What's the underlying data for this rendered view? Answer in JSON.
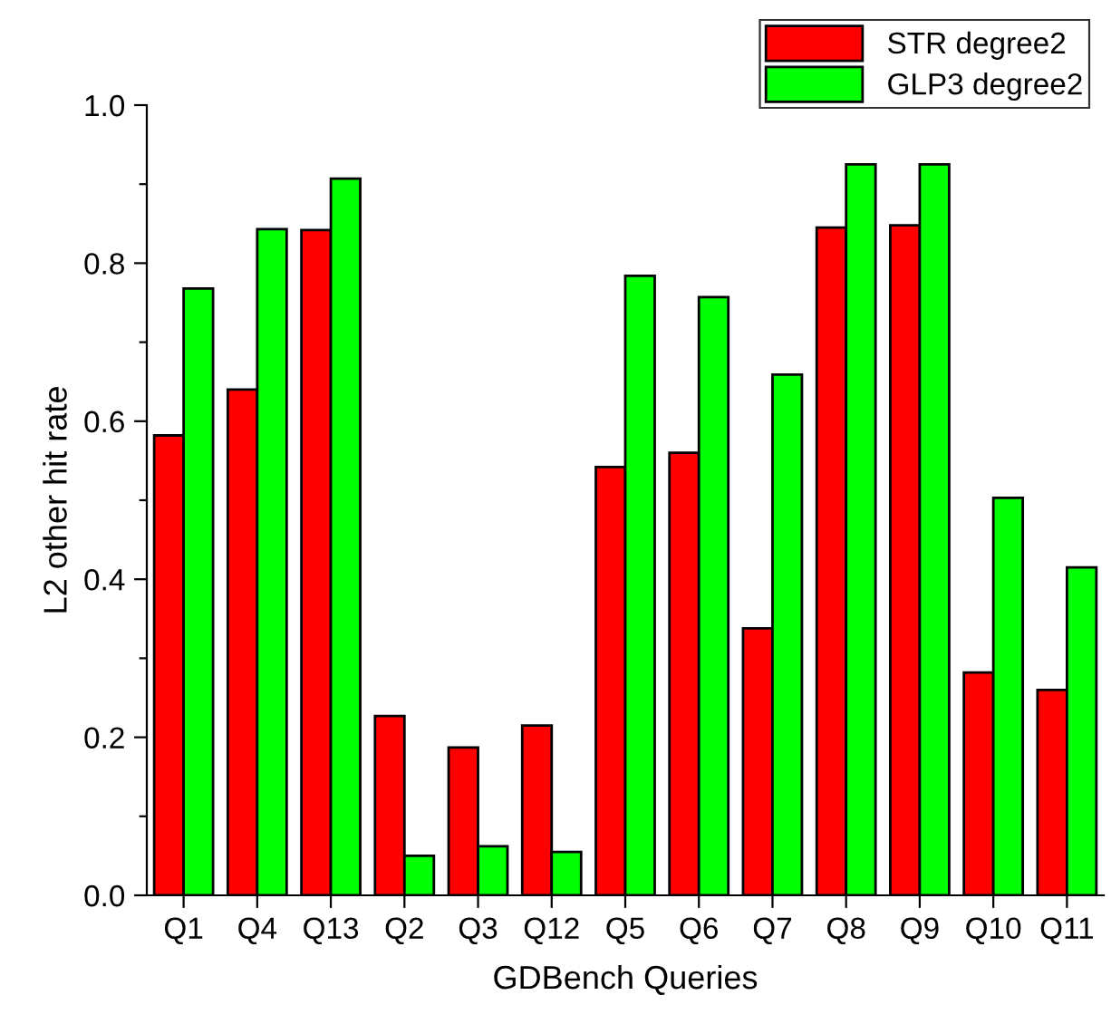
{
  "chart_data": {
    "type": "bar",
    "xlabel": "GDBench Queries",
    "ylabel": "L2 other hit rate",
    "categories": [
      "Q1",
      "Q4",
      "Q13",
      "Q2",
      "Q3",
      "Q12",
      "Q5",
      "Q6",
      "Q7",
      "Q8",
      "Q9",
      "Q10",
      "Q11"
    ],
    "series": [
      {
        "name": "STR degree2",
        "color": "#ff0000",
        "values": [
          0.582,
          0.64,
          0.842,
          0.227,
          0.187,
          0.215,
          0.542,
          0.56,
          0.338,
          0.845,
          0.848,
          0.282,
          0.26
        ]
      },
      {
        "name": "GLP3 degree2",
        "color": "#00ff00",
        "values": [
          0.768,
          0.843,
          0.907,
          0.05,
          0.062,
          0.055,
          0.784,
          0.757,
          0.659,
          0.925,
          0.925,
          0.503,
          0.415
        ]
      }
    ],
    "ylim": [
      0,
      1.0
    ],
    "yticks": [
      {
        "value": 0.0,
        "label": "0.0"
      },
      {
        "value": 0.1,
        "label": null
      },
      {
        "value": 0.2,
        "label": "0.2"
      },
      {
        "value": 0.3,
        "label": null
      },
      {
        "value": 0.4,
        "label": "0.4"
      },
      {
        "value": 0.5,
        "label": null
      },
      {
        "value": 0.6,
        "label": "0.6"
      },
      {
        "value": 0.7,
        "label": null
      },
      {
        "value": 0.8,
        "label": "0.8"
      },
      {
        "value": 0.9,
        "label": null
      },
      {
        "value": 1.0,
        "label": "1.0"
      }
    ],
    "grid": false,
    "legend": "top right"
  }
}
